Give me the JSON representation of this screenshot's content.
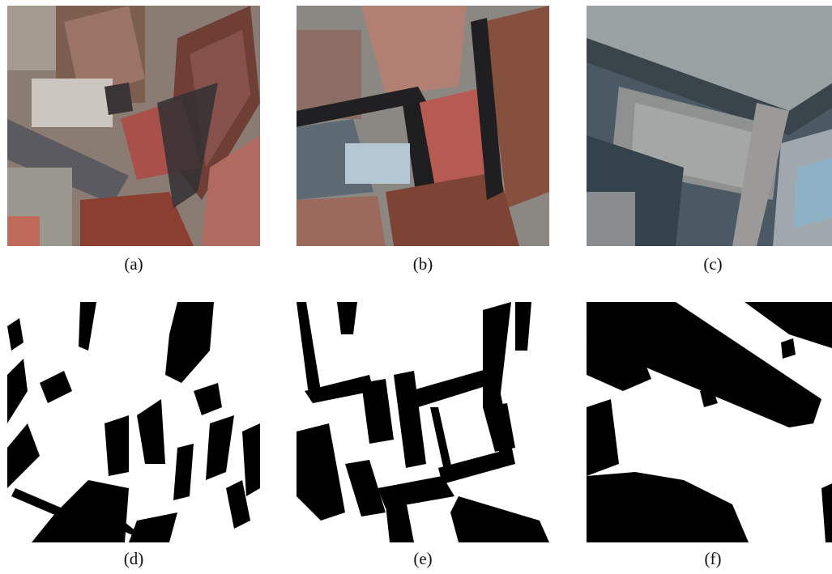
{
  "figure": {
    "panels": [
      {
        "id": "a",
        "caption": "(a)",
        "kind": "aerial-image"
      },
      {
        "id": "b",
        "caption": "(b)",
        "kind": "aerial-image"
      },
      {
        "id": "c",
        "caption": "(c)",
        "kind": "aerial-image"
      },
      {
        "id": "d",
        "caption": "(d)",
        "kind": "binary-shadow-mask"
      },
      {
        "id": "e",
        "caption": "(e)",
        "kind": "binary-shadow-mask"
      },
      {
        "id": "f",
        "caption": "(f)",
        "kind": "binary-shadow-mask"
      }
    ]
  }
}
